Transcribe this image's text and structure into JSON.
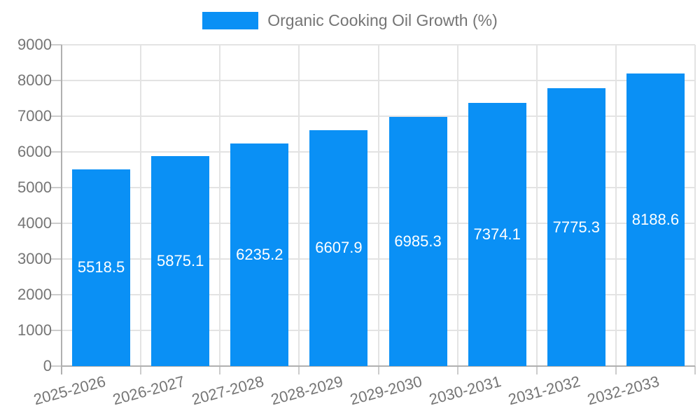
{
  "legend": {
    "label": "Organic Cooking Oil Growth (%)"
  },
  "chart_data": {
    "type": "bar",
    "title": "Organic Cooking Oil Growth (%)",
    "categories": [
      "2025-2026",
      "2026-2027",
      "2027-2028",
      "2028-2029",
      "2029-2030",
      "2030-2031",
      "2031-2032",
      "2032-2033"
    ],
    "values": [
      5518.5,
      5875.1,
      6235.2,
      6607.9,
      6985.3,
      7374.1,
      7775.3,
      8188.6
    ],
    "value_labels": [
      "5518.5",
      "5875.1",
      "6235.2",
      "6607.9",
      "6985.3",
      "7374.1",
      "7775.3",
      "8188.6"
    ],
    "xlabel": "",
    "ylabel": "",
    "ylim": [
      0,
      9000
    ],
    "ytick_step": 1000,
    "yticks": [
      0,
      1000,
      2000,
      3000,
      4000,
      5000,
      6000,
      7000,
      8000,
      9000
    ],
    "grid": true,
    "legend_position": "top",
    "colors": {
      "bar": "#0a90f5",
      "bar_value_label": "#ffffff",
      "axis_text": "#757575",
      "grid_line": "#e3e3e3",
      "axis_line": "#b0b0b0",
      "tick_mark": "#cccccc"
    }
  }
}
